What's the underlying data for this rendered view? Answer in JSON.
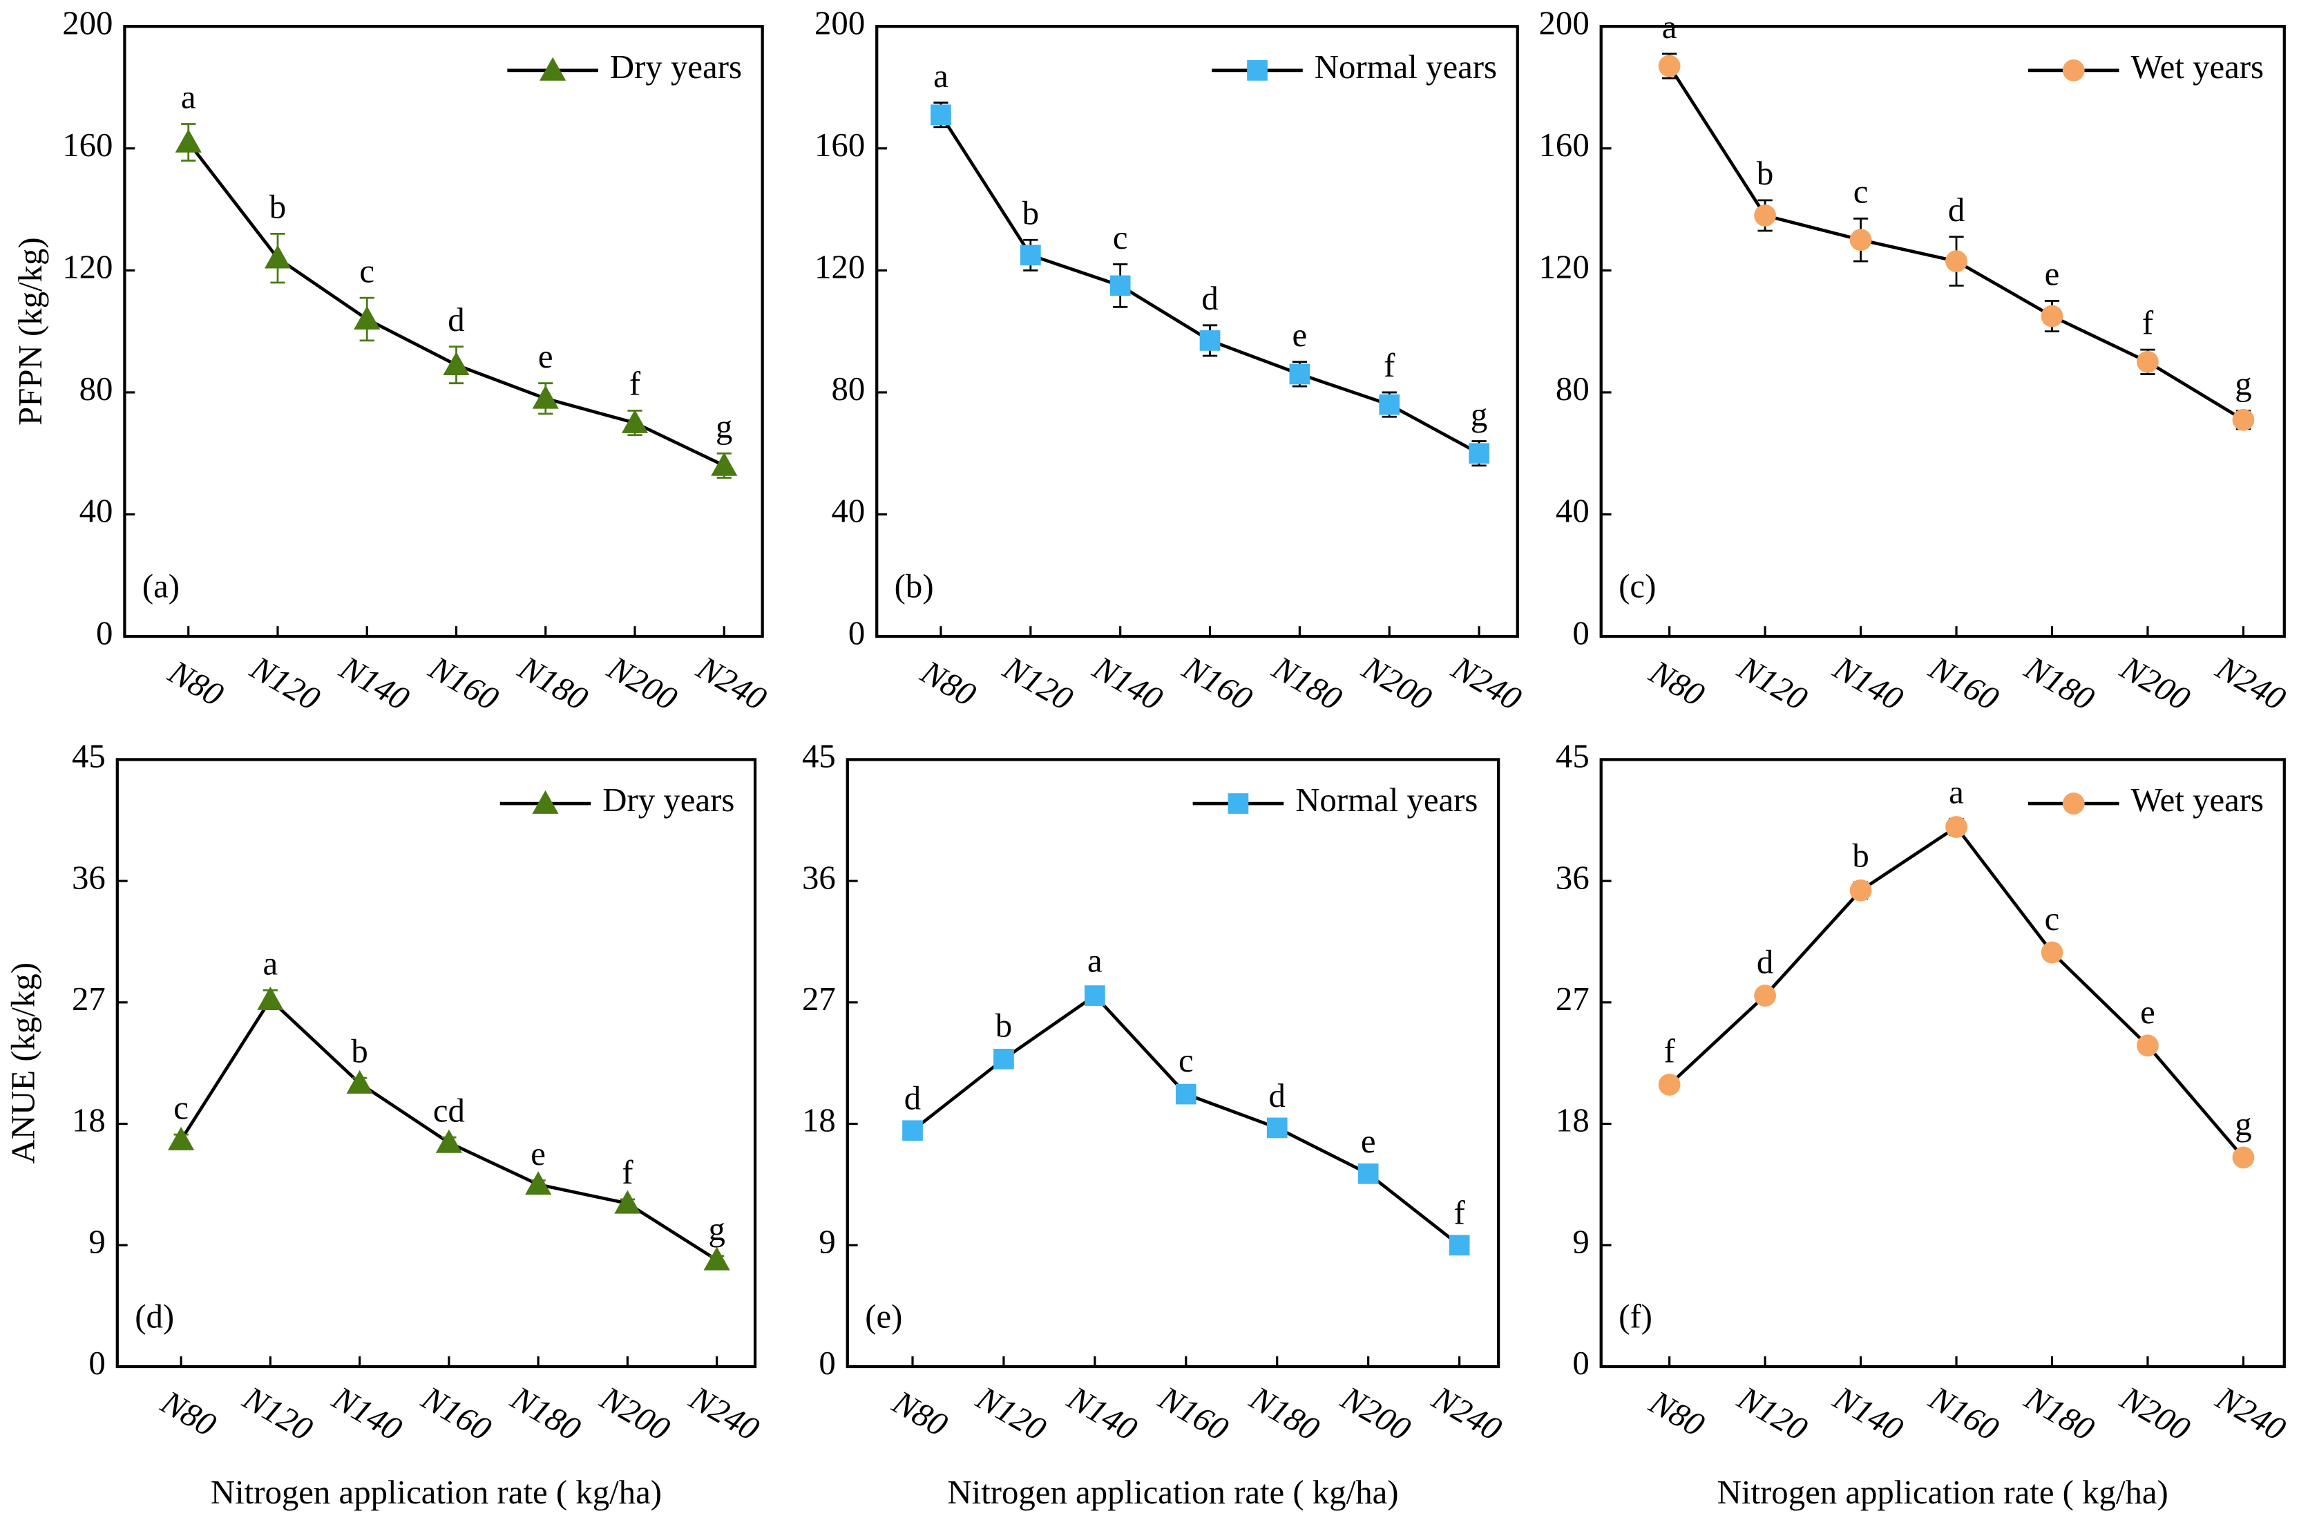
{
  "chart_data": [
    {
      "type": "line",
      "panel_label": "(a)",
      "ylabel": "PFPN (kg/kg)",
      "legend": "upper right",
      "categories": [
        "N80",
        "N120",
        "N140",
        "N160",
        "N180",
        "N200",
        "N240"
      ],
      "ylim": [
        0,
        200
      ],
      "yticks": [
        0,
        40,
        80,
        120,
        160,
        200
      ],
      "series": [
        {
          "name": "Dry years",
          "color": "#4a7a12",
          "error_color": "#4a7a12",
          "marker": "triangle",
          "values": [
            162,
            124,
            104,
            89,
            78,
            70,
            56
          ],
          "errors": [
            6,
            8,
            7,
            6,
            5,
            4,
            4
          ],
          "significance_labels": [
            "a",
            "b",
            "c",
            "d",
            "e",
            "f",
            "g"
          ]
        }
      ]
    },
    {
      "type": "line",
      "panel_label": "(b)",
      "legend": "upper right",
      "categories": [
        "N80",
        "N120",
        "N140",
        "N160",
        "N180",
        "N200",
        "N240"
      ],
      "ylim": [
        0,
        200
      ],
      "yticks": [
        0,
        40,
        80,
        120,
        160,
        200
      ],
      "series": [
        {
          "name": "Normal years",
          "color": "#3fb4f0",
          "error_color": "#000000",
          "marker": "square",
          "values": [
            171,
            125,
            115,
            97,
            86,
            76,
            60
          ],
          "errors": [
            4,
            5,
            7,
            5,
            4,
            4,
            4
          ],
          "significance_labels": [
            "a",
            "b",
            "c",
            "d",
            "e",
            "f",
            "g"
          ]
        }
      ]
    },
    {
      "type": "line",
      "panel_label": "(c)",
      "legend": "upper right",
      "categories": [
        "N80",
        "N120",
        "N140",
        "N160",
        "N180",
        "N200",
        "N240"
      ],
      "ylim": [
        0,
        200
      ],
      "yticks": [
        0,
        40,
        80,
        120,
        160,
        200
      ],
      "series": [
        {
          "name": "Wet years",
          "color": "#f5a561",
          "error_color": "#000000",
          "marker": "circle",
          "values": [
            187,
            138,
            130,
            123,
            105,
            90,
            71
          ],
          "errors": [
            4,
            5,
            7,
            8,
            5,
            4,
            3
          ],
          "significance_labels": [
            "a",
            "b",
            "c",
            "d",
            "e",
            "f",
            "g"
          ]
        }
      ]
    },
    {
      "type": "line",
      "panel_label": "(d)",
      "ylabel": "ANUE (kg/kg)",
      "xlabel": "Nitrogen application rate ( kg/ha)",
      "legend": "upper right",
      "categories": [
        "N80",
        "N120",
        "N140",
        "N160",
        "N180",
        "N200",
        "N240"
      ],
      "ylim": [
        0,
        45
      ],
      "yticks": [
        0,
        9,
        18,
        27,
        36,
        45
      ],
      "series": [
        {
          "name": "Dry years",
          "color": "#4a7a12",
          "error_color": "#4a7a12",
          "marker": "triangle",
          "values": [
            16.8,
            27.2,
            21.0,
            16.6,
            13.5,
            12.1,
            7.9
          ],
          "errors": [
            0.4,
            0.7,
            0.4,
            0.4,
            0.3,
            0.3,
            0.3
          ],
          "significance_labels": [
            "c",
            "a",
            "b",
            "cd",
            "e",
            "f",
            "g"
          ]
        }
      ]
    },
    {
      "type": "line",
      "panel_label": "(e)",
      "xlabel": "Nitrogen application rate ( kg/ha)",
      "legend": "upper right",
      "categories": [
        "N80",
        "N120",
        "N140",
        "N160",
        "N180",
        "N200",
        "N240"
      ],
      "ylim": [
        0,
        45
      ],
      "yticks": [
        0,
        9,
        18,
        27,
        36,
        45
      ],
      "series": [
        {
          "name": "Normal years",
          "color": "#3fb4f0",
          "error_color": "#000000",
          "marker": "square",
          "values": [
            17.5,
            22.8,
            27.5,
            20.2,
            17.7,
            14.3,
            9.0
          ],
          "errors": [
            0.4,
            0.5,
            0.6,
            0.5,
            0.4,
            0.4,
            0.4
          ],
          "significance_labels": [
            "d",
            "b",
            "a",
            "c",
            "d",
            "e",
            "f"
          ]
        }
      ]
    },
    {
      "type": "line",
      "panel_label": "(f)",
      "xlabel": "Nitrogen application rate ( kg/ha)",
      "legend": "upper right",
      "categories": [
        "N80",
        "N120",
        "N140",
        "N160",
        "N180",
        "N200",
        "N240"
      ],
      "ylim": [
        0,
        45
      ],
      "yticks": [
        0,
        9,
        18,
        27,
        36,
        45
      ],
      "series": [
        {
          "name": "Wet years",
          "color": "#f5a561",
          "error_color": "#000000",
          "marker": "circle",
          "values": [
            20.9,
            27.5,
            35.3,
            40.0,
            30.7,
            23.8,
            15.5
          ],
          "errors": [
            0.5,
            0.5,
            0.6,
            0.6,
            0.5,
            0.5,
            0.5
          ],
          "significance_labels": [
            "f",
            "d",
            "b",
            "a",
            "c",
            "e",
            "g"
          ]
        }
      ]
    }
  ]
}
